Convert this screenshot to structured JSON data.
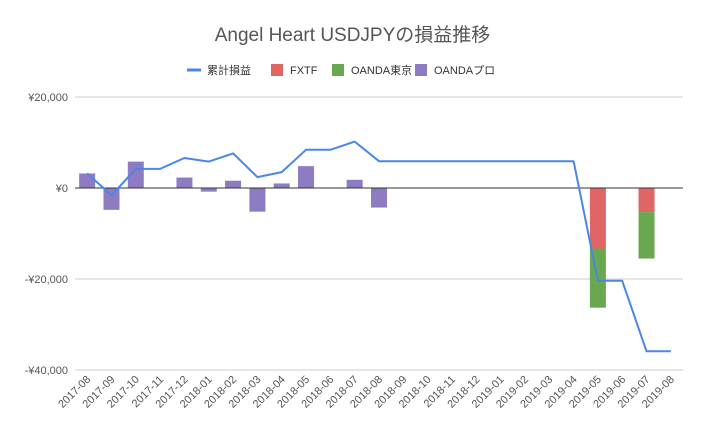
{
  "chart_data": {
    "type": "bar",
    "title": "Angel Heart USDJPYの損益推移",
    "xlabel": "",
    "ylabel": "",
    "ylim": [
      -40000,
      20000
    ],
    "yticks": [
      20000,
      0,
      -20000,
      -40000
    ],
    "ytick_labels": [
      "¥20,000",
      "¥0",
      "-¥20,000",
      "-¥40,000"
    ],
    "grid": true,
    "legend": "top",
    "stacked": true,
    "categories": [
      "2017-08",
      "2017-09",
      "2017-10",
      "2017-11",
      "2017-12",
      "2018-01",
      "2018-02",
      "2018-03",
      "2018-04",
      "2018-05",
      "2018-06",
      "2018-07",
      "2018-08",
      "2018-09",
      "2018-10",
      "2018-11",
      "2018-12",
      "2019-01",
      "2019-02",
      "2019-03",
      "2019-04",
      "2019-05",
      "2019-06",
      "2019-07",
      "2019-08"
    ],
    "series": [
      {
        "name": "累計損益",
        "kind": "line",
        "color": "#4a86e8",
        "values": [
          3200,
          -1600,
          4200,
          4200,
          6600,
          5800,
          7600,
          2400,
          3500,
          8400,
          8400,
          10200,
          5900,
          5900,
          5900,
          5900,
          5900,
          5900,
          5900,
          5900,
          5900,
          -20400,
          -20400,
          -35900,
          -35900
        ]
      },
      {
        "name": "FXTF",
        "kind": "bar",
        "color": "#e06666",
        "values": [
          0,
          0,
          0,
          0,
          0,
          0,
          0,
          0,
          0,
          0,
          0,
          0,
          0,
          0,
          0,
          0,
          0,
          0,
          0,
          0,
          0,
          -13300,
          0,
          -5300,
          0
        ]
      },
      {
        "name": "OANDA東京",
        "kind": "bar",
        "color": "#6aa84f",
        "values": [
          0,
          0,
          0,
          0,
          0,
          0,
          0,
          0,
          0,
          0,
          0,
          0,
          0,
          0,
          0,
          0,
          0,
          0,
          0,
          0,
          0,
          -13000,
          0,
          -10200,
          0
        ]
      },
      {
        "name": "OANDAプロ",
        "kind": "bar",
        "color": "#8e7cc3",
        "values": [
          3200,
          -4800,
          5800,
          0,
          2300,
          -800,
          1600,
          -5200,
          1000,
          4800,
          0,
          1800,
          -4300,
          0,
          0,
          0,
          0,
          0,
          0,
          0,
          0,
          0,
          0,
          0,
          0
        ]
      }
    ]
  }
}
